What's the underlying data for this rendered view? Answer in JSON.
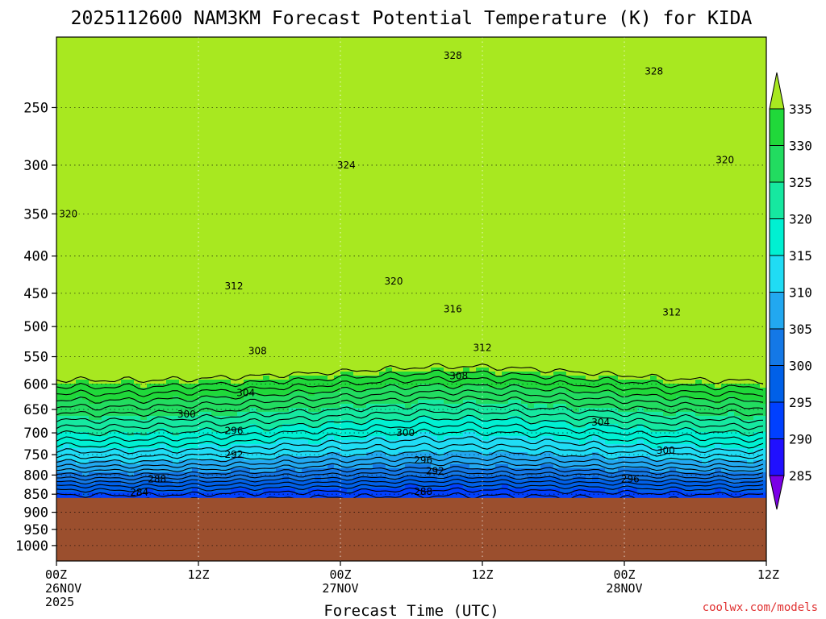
{
  "title": "2025112600 NAM3KM Forecast Potential Temperature (K) for KIDA",
  "credit": "coolwx.com/models",
  "chart_data": {
    "type": "heatmap",
    "title": "2025112600 NAM3KM Forecast Potential Temperature (K) for KIDA",
    "xlabel": "Forecast Time (UTC)",
    "ylabel": "",
    "x_ticks": [
      {
        "hour": 0,
        "lines": [
          "00Z",
          "26NOV",
          "2025"
        ]
      },
      {
        "hour": 12,
        "lines": [
          "12Z"
        ]
      },
      {
        "hour": 24,
        "lines": [
          "00Z",
          "27NOV"
        ]
      },
      {
        "hour": 36,
        "lines": [
          "12Z"
        ]
      },
      {
        "hour": 48,
        "lines": [
          "00Z",
          "28NOV"
        ]
      },
      {
        "hour": 60,
        "lines": [
          "12Z"
        ]
      }
    ],
    "xlim": [
      0,
      60
    ],
    "y_scale": "log-pressure (hPa, inverted)",
    "ylim": [
      1050,
      200
    ],
    "y_ticks": [
      250,
      300,
      350,
      400,
      450,
      500,
      550,
      600,
      650,
      700,
      750,
      800,
      850,
      900,
      950,
      1000
    ],
    "ground_pressure": 860,
    "ground_color": "#9b4f2e",
    "grid": true,
    "colorbar": {
      "levels": [
        285,
        290,
        295,
        300,
        305,
        310,
        315,
        320,
        325,
        330,
        335
      ],
      "colors": [
        "#7a00e6",
        "#8c14f0",
        "#2010ff",
        "#0040ff",
        "#0060e8",
        "#1478e6",
        "#22a8f0",
        "#20dcf4",
        "#00f0d2",
        "#16e8a0",
        "#22dc60",
        "#20d83a",
        "#a8e820"
      ]
    },
    "contour_labels": [
      {
        "text": "328",
        "hour": 33.5,
        "p": 212
      },
      {
        "text": "328",
        "hour": 50.5,
        "p": 223
      },
      {
        "text": "324",
        "hour": 24.5,
        "p": 300
      },
      {
        "text": "320",
        "hour": 56.5,
        "p": 295
      },
      {
        "text": "320",
        "hour": 1.0,
        "p": 350
      },
      {
        "text": "320",
        "hour": 28.5,
        "p": 433
      },
      {
        "text": "316",
        "hour": 33.5,
        "p": 473
      },
      {
        "text": "312",
        "hour": 15.0,
        "p": 440
      },
      {
        "text": "312",
        "hour": 52.0,
        "p": 478
      },
      {
        "text": "312",
        "hour": 36.0,
        "p": 535
      },
      {
        "text": "308",
        "hour": 17.0,
        "p": 540
      },
      {
        "text": "308",
        "hour": 34.0,
        "p": 585
      },
      {
        "text": "304",
        "hour": 16.0,
        "p": 617
      },
      {
        "text": "304",
        "hour": 46.0,
        "p": 677
      },
      {
        "text": "300",
        "hour": 11.0,
        "p": 660
      },
      {
        "text": "300",
        "hour": 29.5,
        "p": 700
      },
      {
        "text": "300",
        "hour": 51.5,
        "p": 740
      },
      {
        "text": "296",
        "hour": 15.0,
        "p": 695
      },
      {
        "text": "296",
        "hour": 31.0,
        "p": 763
      },
      {
        "text": "296",
        "hour": 48.5,
        "p": 810
      },
      {
        "text": "292",
        "hour": 15.0,
        "p": 750
      },
      {
        "text": "292",
        "hour": 32.0,
        "p": 790
      },
      {
        "text": "288",
        "hour": 8.5,
        "p": 810
      },
      {
        "text": "288",
        "hour": 31.0,
        "p": 843
      },
      {
        "text": "284",
        "hour": 7.0,
        "p": 845
      }
    ]
  }
}
